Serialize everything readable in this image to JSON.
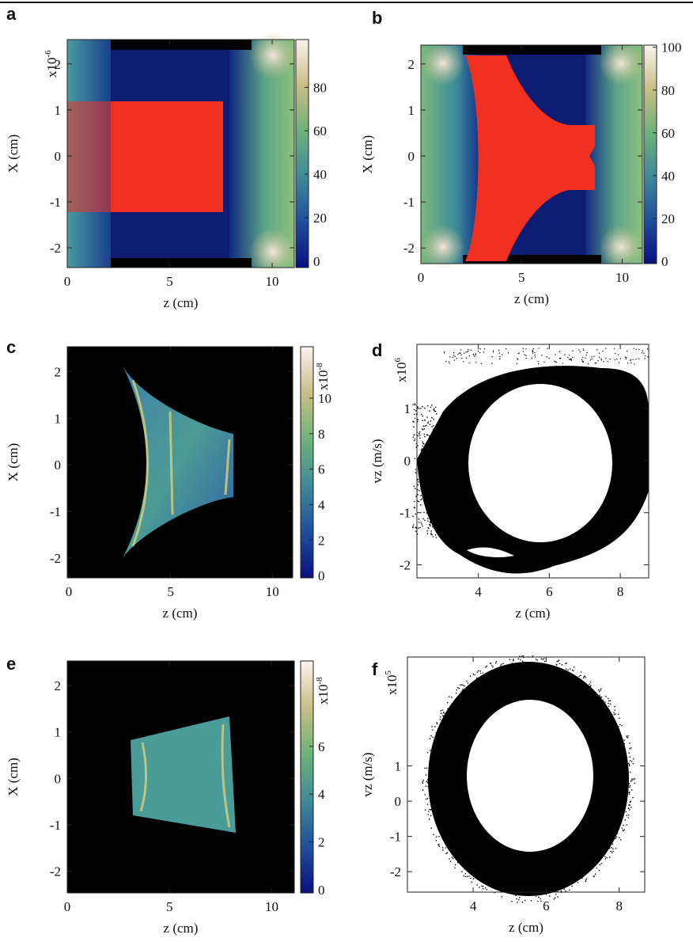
{
  "chart_data": [
    {
      "type": "heatmap",
      "panel": "a",
      "xlabel": "z (cm)",
      "ylabel": "X (cm)",
      "xlim": [
        0,
        11.08
      ],
      "xticks": [
        0,
        5,
        10
      ],
      "ylim": [
        -2.43,
        2.53
      ],
      "yticks": [
        -2,
        -1,
        0,
        1,
        2
      ],
      "exponent": {
        "base": "x10",
        "power": "-6"
      },
      "clim": [
        -3,
        102
      ],
      "cticks": [
        0,
        20,
        40,
        60,
        80
      ]
    },
    {
      "type": "heatmap",
      "panel": "b",
      "xlabel": "z (cm)",
      "ylabel": "X (cm)",
      "xlim": [
        0,
        11
      ],
      "xticks": [
        0,
        5,
        10
      ],
      "ylim": [
        -2.34,
        2.41
      ],
      "yticks": [
        -2,
        -1,
        0,
        1,
        2
      ],
      "clim": [
        -1.1,
        101
      ],
      "cticks": [
        0,
        20,
        40,
        60,
        80,
        100
      ]
    },
    {
      "type": "heatmap",
      "panel": "c",
      "xlabel": "z (cm)",
      "ylabel": "X (cm)",
      "xlim": [
        -0.08,
        11.0
      ],
      "xticks": [
        0,
        5,
        10
      ],
      "ylim": [
        -2.42,
        2.53
      ],
      "yticks": [
        -2,
        -1,
        0,
        1,
        2
      ],
      "clim": [
        -0.13,
        12.9
      ],
      "cticks": [
        0,
        2,
        4,
        6,
        8,
        10
      ],
      "cexponent": {
        "base": "x10",
        "power": "-8"
      }
    },
    {
      "type": "scatter",
      "panel": "d",
      "xlabel": "z (cm)",
      "ylabel": "vz (m/s)",
      "xlim": [
        2.27,
        8.8
      ],
      "xticks": [
        4,
        6,
        8
      ],
      "ylim": [
        -2.25,
        2.23
      ],
      "yticks": [
        -2,
        -1,
        0,
        1
      ],
      "exponent": {
        "base": "x10",
        "power": "6"
      }
    },
    {
      "type": "heatmap",
      "panel": "e",
      "xlabel": "z (cm)",
      "ylabel": "X (cm)",
      "xlim": [
        0,
        11.1
      ],
      "xticks": [
        0,
        5,
        10
      ],
      "ylim": [
        -2.47,
        2.53
      ],
      "yticks": [
        -2,
        -1,
        0,
        1,
        2
      ],
      "clim": [
        -0.13,
        9.57
      ],
      "cticks": [
        0,
        2,
        4,
        6
      ],
      "cexponent": {
        "base": "x10",
        "power": "-8"
      }
    },
    {
      "type": "scatter",
      "panel": "f",
      "xlabel": "z (cm)",
      "ylabel": "vz (m/s)",
      "xlim": [
        2.2,
        8.7
      ],
      "xticks": [
        4,
        6,
        8
      ],
      "ylim": [
        -2.58,
        4.09
      ],
      "yticks": [
        -2,
        -1,
        0,
        1
      ],
      "exponent": {
        "base": "x10",
        "power": "5"
      }
    }
  ]
}
